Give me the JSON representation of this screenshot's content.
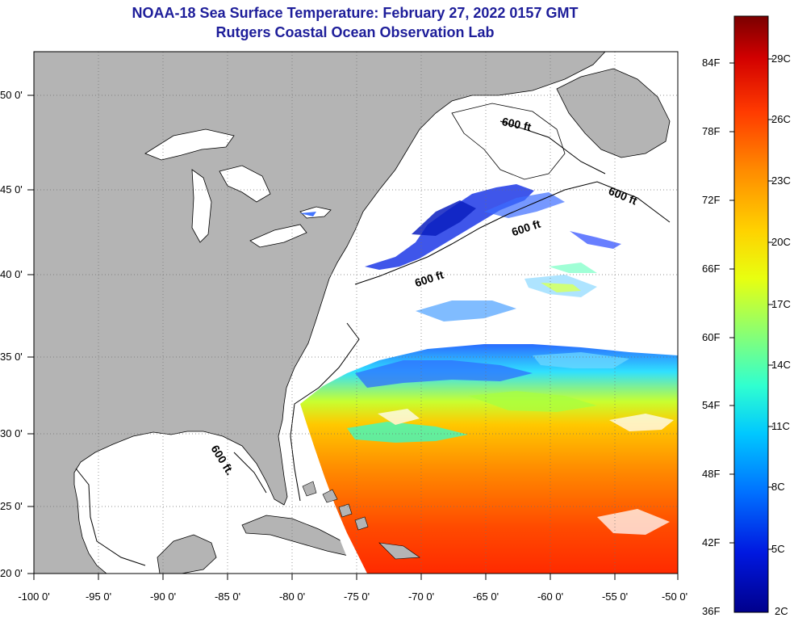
{
  "header": {
    "title": "NOAA-18 Sea Surface Temperature:  February 27, 2022 0157 GMT",
    "subtitle": "Rutgers Coastal Ocean Observation Lab"
  },
  "map": {
    "lon_ticks": [
      "-100 0'",
      "-95 0'",
      "-90 0'",
      "-85 0'",
      "-80 0'",
      "-75 0'",
      "-70 0'",
      "-65 0'",
      "-60 0'",
      "-55 0'",
      "-50 0'"
    ],
    "lat_ticks": [
      "50 0'",
      "45 0'",
      "40 0'",
      "35 0'",
      "30 0'",
      "25 0'",
      "20 0'"
    ],
    "depth_contour_label": "600 ft",
    "depth_contour_label_alt": "600 ft.",
    "colors": {
      "land": "#b4b4b4",
      "ocean_no_data": "#ffffff",
      "grid": "#6f6f6f"
    }
  },
  "colorbar": {
    "fahrenheit_labels": [
      "84F",
      "78F",
      "72F",
      "66F",
      "60F",
      "54F",
      "48F",
      "42F",
      "36F"
    ],
    "celsius_labels": [
      "29C",
      "26C",
      "23C",
      "20C",
      "17C",
      "14C",
      "11C",
      "8C",
      "5C",
      "2C"
    ],
    "colors": [
      "#7a0000",
      "#d20000",
      "#ff3a00",
      "#ff8c00",
      "#ffd200",
      "#e8ff10",
      "#8cff70",
      "#30ffd0",
      "#00c8ff",
      "#0070ff",
      "#0018e0",
      "#00008c"
    ]
  }
}
